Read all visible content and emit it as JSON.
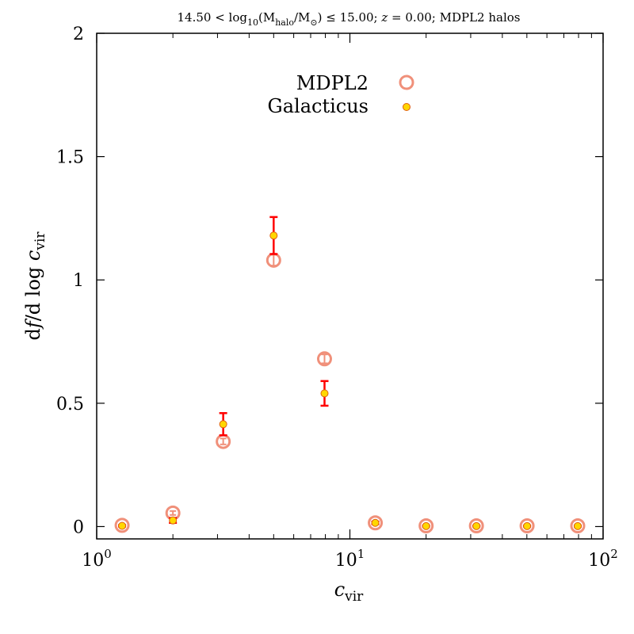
{
  "chart_data": {
    "type": "scatter",
    "title": "14.50 < log10(Mhalo/M☉) ≤ 15.00; z = 0.00; MDPL2 halos",
    "title_parts": {
      "a": "14.50 < log",
      "sub_a": "10",
      "b": "(M",
      "sub_b": "halo",
      "c": "/M",
      "sub_c": "⊙",
      "d": ") ≤ 15.00; ",
      "e": "z",
      "f": " = 0.00; MDPL2 halos"
    },
    "xlabel": {
      "main": "c",
      "sub": "vir"
    },
    "ylabel": {
      "a": "d",
      "b": "f",
      "c": "/d log ",
      "d": "c",
      "sub": "vir"
    },
    "xscale": "log",
    "xlim": [
      1,
      100
    ],
    "ylim": [
      -0.05,
      2
    ],
    "x_ticks": [
      {
        "value": 1,
        "base": "10",
        "exp": "0"
      },
      {
        "value": 10,
        "base": "10",
        "exp": "1"
      },
      {
        "value": 100,
        "base": "10",
        "exp": "2"
      }
    ],
    "y_ticks": [
      {
        "value": 0,
        "label": "0"
      },
      {
        "value": 0.5,
        "label": "0.5"
      },
      {
        "value": 1,
        "label": "1"
      },
      {
        "value": 1.5,
        "label": "1.5"
      },
      {
        "value": 2,
        "label": "2"
      }
    ],
    "legend_position": "top-center",
    "series": [
      {
        "name": "MDPL2",
        "marker": "open-circle",
        "color": "#f0907a",
        "points": [
          {
            "x": 1.26,
            "y": 0.005,
            "err": 0.004
          },
          {
            "x": 2.0,
            "y": 0.055,
            "err": 0.008
          },
          {
            "x": 3.16,
            "y": 0.345,
            "err": 0.012
          },
          {
            "x": 5.0,
            "y": 1.08,
            "err": 0.022
          },
          {
            "x": 7.94,
            "y": 0.68,
            "err": 0.018
          },
          {
            "x": 12.6,
            "y": 0.015,
            "err": 0.004
          },
          {
            "x": 20.0,
            "y": 0.003,
            "err": 0.002
          },
          {
            "x": 31.6,
            "y": 0.003,
            "err": 0.002
          },
          {
            "x": 50.1,
            "y": 0.003,
            "err": 0.002
          },
          {
            "x": 79.4,
            "y": 0.003,
            "err": 0.002
          }
        ]
      },
      {
        "name": "Galacticus",
        "marker": "filled-circle",
        "color": "#ffd700",
        "edge_color": "#e06010",
        "error_color": "#ff0000",
        "points": [
          {
            "x": 1.26,
            "y": 0.003,
            "err": 0.003
          },
          {
            "x": 2.0,
            "y": 0.025,
            "err": 0.01
          },
          {
            "x": 3.16,
            "y": 0.415,
            "err": 0.045
          },
          {
            "x": 5.0,
            "y": 1.18,
            "err": 0.075
          },
          {
            "x": 7.94,
            "y": 0.54,
            "err": 0.05
          },
          {
            "x": 12.6,
            "y": 0.015,
            "err": 0.005
          },
          {
            "x": 20.0,
            "y": 0.002,
            "err": 0.002
          },
          {
            "x": 31.6,
            "y": 0.002,
            "err": 0.002
          },
          {
            "x": 50.1,
            "y": 0.002,
            "err": 0.002
          },
          {
            "x": 79.4,
            "y": 0.002,
            "err": 0.002
          }
        ]
      }
    ]
  }
}
